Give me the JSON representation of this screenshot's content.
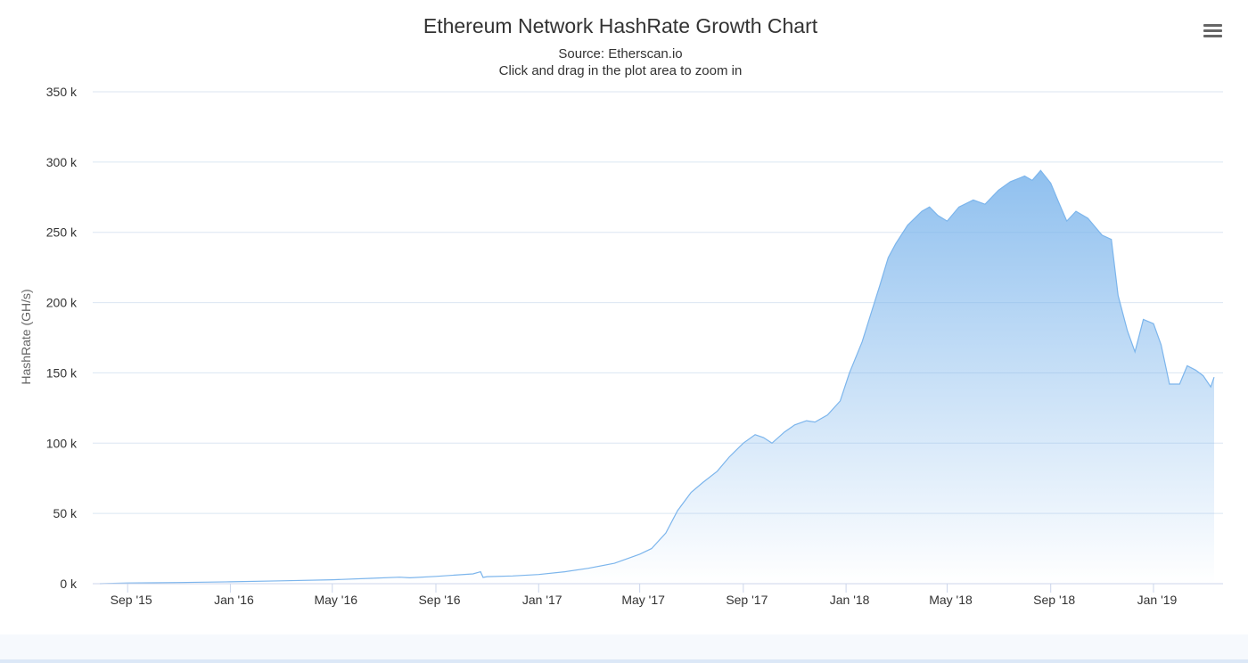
{
  "chart_data": {
    "type": "area",
    "title": "Ethereum Network HashRate Growth Chart",
    "subtitle": "Source: Etherscan.io",
    "hint": "Click and drag in the plot area to zoom in",
    "xlabel": "",
    "ylabel": "HashRate (GH/s)",
    "ylim": [
      0,
      350000
    ],
    "xlim": [
      "2015-07-30",
      "2019-03-14"
    ],
    "grid": true,
    "yticks": [
      0,
      50000,
      100000,
      150000,
      200000,
      250000,
      300000,
      350000
    ],
    "ytick_labels": [
      "0 k",
      "50 k",
      "100 k",
      "150 k",
      "200 k",
      "250 k",
      "300 k",
      "350 k"
    ],
    "xticks": [
      "2015-09-01",
      "2016-01-01",
      "2016-05-01",
      "2016-09-01",
      "2017-01-01",
      "2017-05-01",
      "2017-09-01",
      "2018-01-01",
      "2018-05-01",
      "2018-09-01",
      "2019-01-01"
    ],
    "xtick_labels": [
      "Sep '15",
      "Jan '16",
      "May '16",
      "Sep '16",
      "Jan '17",
      "May '17",
      "Sep '17",
      "Jan '18",
      "May '18",
      "Sep '18",
      "Jan '19"
    ],
    "series": [
      {
        "color": "#7cb5ec",
        "x": [
          "2015-07-30",
          "2015-09-01",
          "2015-11-01",
          "2016-01-01",
          "2016-03-01",
          "2016-05-01",
          "2016-06-15",
          "2016-07-20",
          "2016-08-01",
          "2016-09-01",
          "2016-10-15",
          "2016-10-24",
          "2016-10-27",
          "2016-11-01",
          "2016-12-01",
          "2017-01-01",
          "2017-02-01",
          "2017-03-01",
          "2017-04-01",
          "2017-05-01",
          "2017-05-15",
          "2017-06-01",
          "2017-06-15",
          "2017-07-01",
          "2017-07-15",
          "2017-08-01",
          "2017-08-15",
          "2017-09-01",
          "2017-09-15",
          "2017-09-25",
          "2017-10-05",
          "2017-10-20",
          "2017-11-01",
          "2017-11-15",
          "2017-11-25",
          "2017-12-10",
          "2017-12-25",
          "2018-01-05",
          "2018-01-20",
          "2018-02-01",
          "2018-02-10",
          "2018-02-20",
          "2018-03-01",
          "2018-03-15",
          "2018-04-01",
          "2018-04-10",
          "2018-04-20",
          "2018-05-01",
          "2018-05-15",
          "2018-06-01",
          "2018-06-15",
          "2018-07-01",
          "2018-07-15",
          "2018-08-01",
          "2018-08-10",
          "2018-08-20",
          "2018-09-01",
          "2018-09-10",
          "2018-09-20",
          "2018-10-01",
          "2018-10-15",
          "2018-11-01",
          "2018-11-12",
          "2018-11-20",
          "2018-12-01",
          "2018-12-10",
          "2018-12-20",
          "2019-01-01",
          "2019-01-10",
          "2019-01-20",
          "2019-02-01",
          "2019-02-10",
          "2019-02-20",
          "2019-03-01",
          "2019-03-10",
          "2019-03-14"
        ],
        "values": [
          0,
          500,
          800,
          1300,
          2000,
          2800,
          3800,
          4600,
          4200,
          5200,
          7000,
          8500,
          4500,
          5000,
          5500,
          6500,
          8500,
          11000,
          14500,
          21000,
          25000,
          36000,
          52000,
          65000,
          72000,
          80000,
          90000,
          100000,
          106000,
          104000,
          100000,
          108000,
          113000,
          116000,
          115000,
          120000,
          130000,
          150000,
          172000,
          195000,
          212000,
          232000,
          242000,
          255000,
          265000,
          268000,
          262000,
          258000,
          268000,
          273000,
          270000,
          280000,
          286000,
          290000,
          287000,
          294000,
          285000,
          272000,
          258000,
          265000,
          260000,
          248000,
          245000,
          205000,
          180000,
          165000,
          188000,
          185000,
          170000,
          142000,
          142000,
          155000,
          152000,
          148000,
          140000,
          147000
        ]
      }
    ]
  },
  "ui": {
    "menu_icon": "hamburger-menu-icon"
  }
}
